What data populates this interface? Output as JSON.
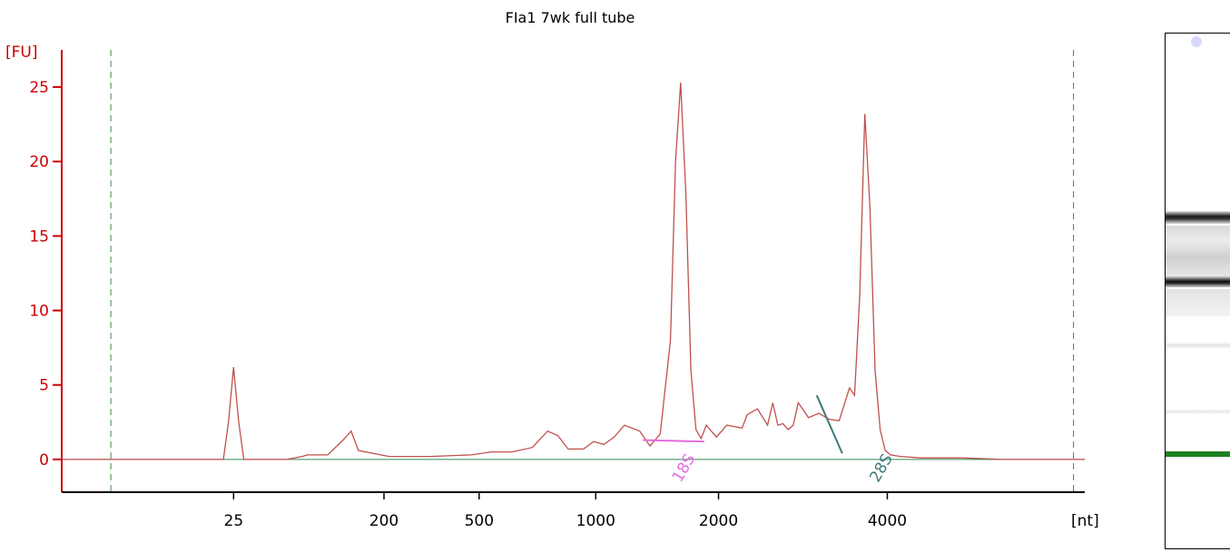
{
  "chart_data": {
    "type": "line",
    "title": "FIa1 7wk full tube",
    "ylabel": "[FU]",
    "xlabel": "[nt]",
    "ylim": [
      -2.2,
      27.5
    ],
    "yticks": [
      0,
      5,
      10,
      15,
      20,
      25
    ],
    "x_tick_labels": [
      "25",
      "200",
      "500",
      "1000",
      "2000",
      "4000"
    ],
    "x_scale": "nonlinear (ladder-calibrated); values given on a 0-100 relative run axis",
    "xlim": [
      0,
      100
    ],
    "x_tick_positions": [
      16.8,
      31.5,
      40.8,
      52.2,
      64.2,
      80.7
    ],
    "marker_lines_x": [
      4.8,
      98.9
    ],
    "series": [
      {
        "x": [
          0,
          2,
          4,
          6,
          8,
          10,
          12,
          14,
          15.8,
          16.3,
          16.8,
          17.3,
          17.8,
          19,
          22,
          23.5,
          24,
          26,
          27.5,
          28.3,
          29,
          32,
          36,
          40,
          42,
          44,
          46,
          47.5,
          48.5,
          49.5,
          51,
          52,
          53,
          54,
          55,
          56.5,
          57.5,
          58.5,
          59.5,
          60,
          60.5,
          61,
          61.5,
          62,
          62.5,
          63,
          64,
          65,
          66.5,
          67,
          68,
          69,
          69.5,
          70,
          70.5,
          71,
          71.5,
          72,
          73,
          74,
          75,
          76,
          77,
          77.5,
          78,
          78.5,
          79,
          79.5,
          80,
          80.5,
          81,
          82,
          84,
          88,
          92,
          96,
          100
        ],
        "y": [
          0,
          0,
          0,
          0,
          0,
          0,
          0,
          0,
          0,
          2.5,
          6.2,
          2.5,
          0,
          0,
          0,
          0.2,
          0.3,
          0.3,
          1.3,
          1.9,
          0.6,
          0.2,
          0.2,
          0.3,
          0.5,
          0.5,
          0.8,
          1.9,
          1.6,
          0.7,
          0.7,
          1.2,
          1,
          1.5,
          2.3,
          1.9,
          0.9,
          1.7,
          8,
          20,
          25.3,
          18,
          6,
          2,
          1.4,
          2.3,
          1.5,
          2.3,
          2.1,
          3,
          3.4,
          2.3,
          3.8,
          2.3,
          2.4,
          2,
          2.3,
          3.8,
          2.8,
          3.1,
          2.7,
          2.6,
          4.8,
          4.3,
          11,
          23.2,
          17,
          6,
          2,
          0.6,
          0.3,
          0.2,
          0.1,
          0.1,
          0,
          0,
          0
        ]
      }
    ],
    "peak_labels": [
      {
        "label": "18S",
        "x": 60.5
      },
      {
        "label": "28S",
        "x": 79.8
      }
    ],
    "colors": {
      "trace": "#c0504d",
      "axis": "#cc0000",
      "baseline": "#2e8b57",
      "marker": "#3a8a3a",
      "label_18s": "#e56be0",
      "label_28s": "#3c7a78",
      "gel_marker_band": "#1e7f1e"
    },
    "grid": false,
    "legend": "none"
  }
}
